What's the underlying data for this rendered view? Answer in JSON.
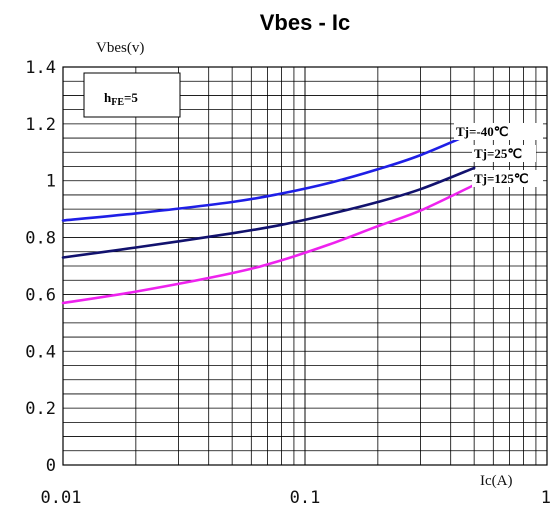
{
  "chart_data": {
    "type": "line",
    "title": "Vbes - Ic",
    "ylabel": "Vbes(v)",
    "xlabel": "Ic(A)",
    "xscale": "log",
    "xlim": [
      0.01,
      1
    ],
    "ylim": [
      0,
      1.4
    ],
    "x_ticks": [
      "0.01",
      "0.1",
      "1"
    ],
    "y_ticks": [
      "0",
      "0.2",
      "0.4",
      "0.6",
      "0.8",
      "1",
      "1.2",
      "1.4"
    ],
    "grid": true,
    "annotation": {
      "main": "h",
      "sub": "FE",
      "rest": "=5"
    },
    "series": [
      {
        "name": "Tj=-40℃",
        "color": "#1f1fe6",
        "x": [
          0.01,
          0.02,
          0.05,
          0.08,
          0.13,
          0.2,
          0.3,
          0.5
        ],
        "y": [
          0.86,
          0.885,
          0.925,
          0.955,
          0.995,
          1.04,
          1.09,
          1.17
        ]
      },
      {
        "name": "Tj=25℃",
        "color": "#12126e",
        "x": [
          0.01,
          0.02,
          0.05,
          0.08,
          0.13,
          0.2,
          0.3,
          0.5
        ],
        "y": [
          0.73,
          0.765,
          0.815,
          0.845,
          0.885,
          0.925,
          0.97,
          1.045
        ]
      },
      {
        "name": "Tj=125℃",
        "color": "#ee22ee",
        "x": [
          0.01,
          0.02,
          0.05,
          0.08,
          0.13,
          0.2,
          0.3,
          0.5
        ],
        "y": [
          0.57,
          0.61,
          0.675,
          0.72,
          0.78,
          0.84,
          0.895,
          0.985
        ]
      }
    ]
  }
}
